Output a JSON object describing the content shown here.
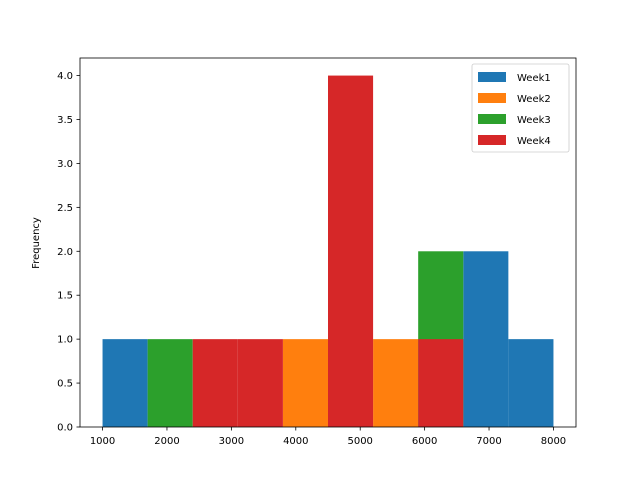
{
  "chart_data": {
    "type": "histogram",
    "title": "",
    "xlabel": "",
    "ylabel": "Frequency",
    "xlim": [
      650,
      8350
    ],
    "ylim": [
      0,
      4.2
    ],
    "bin_edges": [
      1000,
      1700,
      2400,
      3100,
      3800,
      4500,
      5200,
      5900,
      6600,
      7300,
      8000
    ],
    "x_ticks": [
      1000,
      2000,
      3000,
      4000,
      5000,
      6000,
      7000,
      8000
    ],
    "y_ticks": [
      "0.0",
      "0.5",
      "1.0",
      "1.5",
      "2.0",
      "2.5",
      "3.0",
      "3.5",
      "4.0"
    ],
    "grid": false,
    "legend_position": "upper right",
    "series": [
      {
        "name": "Week1",
        "color": "#1f77b4",
        "counts": [
          1,
          0,
          0,
          0,
          0,
          0,
          0,
          0,
          2,
          1
        ]
      },
      {
        "name": "Week2",
        "color": "#ff7f0e",
        "counts": [
          0,
          0,
          0,
          0,
          1,
          0,
          1,
          0,
          0,
          0
        ]
      },
      {
        "name": "Week3",
        "color": "#2ca02c",
        "counts": [
          0,
          1,
          0,
          0,
          0,
          0,
          0,
          2,
          0,
          0
        ]
      },
      {
        "name": "Week4",
        "color": "#d62728",
        "counts": [
          0,
          0,
          1,
          1,
          0,
          4,
          0,
          1,
          0,
          0
        ]
      }
    ]
  }
}
